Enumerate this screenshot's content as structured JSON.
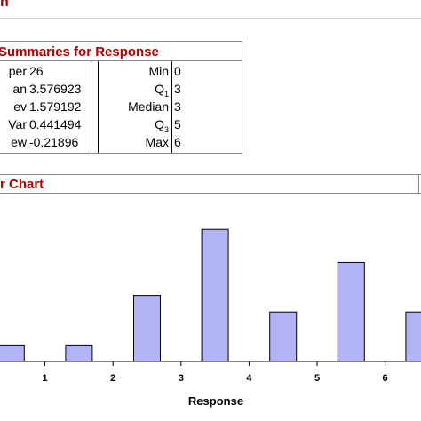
{
  "header": {
    "title_fragment": "n"
  },
  "summary": {
    "title": "Summaries for Response",
    "left": [
      {
        "label": "per",
        "value": "26"
      },
      {
        "label": "an",
        "value": "3.576923"
      },
      {
        "label": "ev",
        "value": "1.579192"
      },
      {
        "label": "Var",
        "value": "0.441494"
      },
      {
        "label": "ew",
        "value": "-0.21896"
      }
    ],
    "right": [
      {
        "label": "Min",
        "sub": "",
        "value": "0"
      },
      {
        "label": "Q",
        "sub": "1",
        "value": "3"
      },
      {
        "label": "Median",
        "sub": "",
        "value": "3"
      },
      {
        "label": "Q",
        "sub": "3",
        "value": "5"
      },
      {
        "label": "Max",
        "sub": "",
        "value": "6"
      }
    ]
  },
  "chart_section": {
    "title": "r Chart"
  },
  "chart_data": {
    "type": "bar",
    "xlabel": "Response",
    "tick_labels": [
      "1",
      "2",
      "3",
      "4",
      "5",
      "6"
    ],
    "bars": [
      {
        "x": 0.5,
        "count": 1
      },
      {
        "x": 1.5,
        "count": 1
      },
      {
        "x": 2.5,
        "count": 4
      },
      {
        "x": 3.5,
        "count": 8
      },
      {
        "x": 4.5,
        "count": 3
      },
      {
        "x": 5.5,
        "count": 6
      },
      {
        "x": 6.5,
        "count": 3
      }
    ],
    "bar_color": "#b3b3f7"
  }
}
